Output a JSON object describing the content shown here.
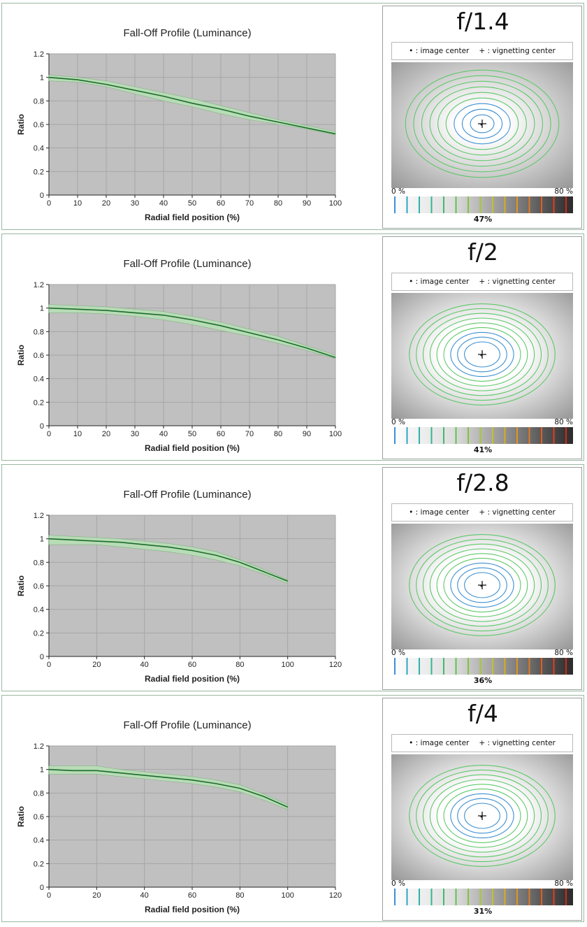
{
  "colors": {
    "plot_bg": "#c0c0c0",
    "grid": "#a6a6a6",
    "curve": "#1d6b2c",
    "band": "#b7e0b5",
    "heat_center": "#ffffff",
    "heat_edge": "#9a9a9a",
    "contour_inner": "#3d8fd1",
    "contour_outer": "#5fc86a"
  },
  "legend": {
    "image_center": "• : image center",
    "vignetting_center": "+ : vignetting center"
  },
  "scale": {
    "low_label": "0 %",
    "high_label": "80 %"
  },
  "colorbar_icons": [
    "cyan-tick",
    "teal-tick",
    "green-tick",
    "yellow-tick",
    "orange-tick",
    "red-tick"
  ],
  "panels": [
    {
      "aperture": "f/1.4",
      "falloff_percent": "47%"
    },
    {
      "aperture": "f/2",
      "falloff_percent": "41%"
    },
    {
      "aperture": "f/2.8",
      "falloff_percent": "36%"
    },
    {
      "aperture": "f/4",
      "falloff_percent": "31%"
    }
  ],
  "chart_data": [
    {
      "type": "line",
      "title": "Fall-Off Profile (Luminance)",
      "xlabel": "Radial field position (%)",
      "ylabel": "Ratio",
      "xlim": [
        0,
        100
      ],
      "ylim": [
        0,
        1.2
      ],
      "xticks": [
        0,
        10,
        20,
        30,
        40,
        50,
        60,
        70,
        80,
        90,
        100
      ],
      "yticks": [
        0,
        0.2,
        0.4,
        0.6,
        0.8,
        1,
        1.2
      ],
      "grid": true,
      "series": [
        {
          "x": [
            0,
            10,
            20,
            30,
            40,
            50,
            60,
            70,
            80,
            90,
            100
          ],
          "y": [
            1.0,
            0.98,
            0.94,
            0.89,
            0.84,
            0.78,
            0.73,
            0.67,
            0.62,
            0.57,
            0.52
          ],
          "upper": [
            1.02,
            1.0,
            0.97,
            0.92,
            0.87,
            0.82,
            0.76,
            0.7,
            0.64,
            0.59,
            0.54
          ],
          "lower": [
            0.97,
            0.96,
            0.92,
            0.86,
            0.8,
            0.75,
            0.69,
            0.64,
            0.6,
            0.56,
            0.51
          ]
        }
      ]
    },
    {
      "type": "line",
      "title": "Fall-Off Profile (Luminance)",
      "xlabel": "Radial field position (%)",
      "ylabel": "Ratio",
      "xlim": [
        0,
        100
      ],
      "ylim": [
        0,
        1.2
      ],
      "xticks": [
        0,
        10,
        20,
        30,
        40,
        50,
        60,
        70,
        80,
        90,
        100
      ],
      "yticks": [
        0,
        0.2,
        0.4,
        0.6,
        0.8,
        1,
        1.2
      ],
      "grid": true,
      "series": [
        {
          "x": [
            0,
            10,
            20,
            30,
            40,
            50,
            60,
            70,
            80,
            90,
            100
          ],
          "y": [
            1.0,
            0.99,
            0.98,
            0.96,
            0.94,
            0.9,
            0.85,
            0.79,
            0.73,
            0.66,
            0.58
          ],
          "upper": [
            1.03,
            1.02,
            1.01,
            0.99,
            0.97,
            0.93,
            0.88,
            0.82,
            0.76,
            0.68,
            0.6
          ],
          "lower": [
            0.96,
            0.96,
            0.95,
            0.93,
            0.9,
            0.86,
            0.81,
            0.76,
            0.7,
            0.64,
            0.57
          ]
        }
      ]
    },
    {
      "type": "line",
      "title": "Fall-Off Profile (Luminance)",
      "xlabel": "Radial field position (%)",
      "ylabel": "Ratio",
      "xlim": [
        0,
        120
      ],
      "ylim": [
        0,
        1.2
      ],
      "xticks": [
        0,
        20,
        40,
        60,
        80,
        100,
        120
      ],
      "yticks": [
        0,
        0.2,
        0.4,
        0.6,
        0.8,
        1,
        1.2
      ],
      "grid": true,
      "series": [
        {
          "x": [
            0,
            10,
            20,
            30,
            40,
            50,
            60,
            70,
            80,
            90,
            100
          ],
          "y": [
            1.0,
            0.99,
            0.98,
            0.97,
            0.95,
            0.93,
            0.9,
            0.86,
            0.8,
            0.72,
            0.64
          ],
          "upper": [
            1.03,
            1.02,
            1.01,
            1.0,
            0.98,
            0.96,
            0.93,
            0.89,
            0.82,
            0.74,
            0.65
          ],
          "lower": [
            0.95,
            0.95,
            0.95,
            0.93,
            0.91,
            0.89,
            0.86,
            0.82,
            0.77,
            0.7,
            0.62
          ]
        }
      ]
    },
    {
      "type": "line",
      "title": "Fall-Off Profile (Luminance)",
      "xlabel": "Radial field position (%)",
      "ylabel": "Ratio",
      "xlim": [
        0,
        120
      ],
      "ylim": [
        0,
        1.2
      ],
      "xticks": [
        0,
        20,
        40,
        60,
        80,
        100,
        120
      ],
      "yticks": [
        0,
        0.2,
        0.4,
        0.6,
        0.8,
        1,
        1.2
      ],
      "grid": true,
      "series": [
        {
          "x": [
            0,
            10,
            20,
            30,
            40,
            50,
            60,
            70,
            80,
            90,
            100
          ],
          "y": [
            1.0,
            0.99,
            0.99,
            0.97,
            0.95,
            0.93,
            0.91,
            0.88,
            0.84,
            0.77,
            0.68
          ],
          "upper": [
            1.03,
            1.03,
            1.03,
            1.0,
            0.98,
            0.96,
            0.94,
            0.91,
            0.87,
            0.79,
            0.7
          ],
          "lower": [
            0.96,
            0.96,
            0.96,
            0.94,
            0.92,
            0.9,
            0.88,
            0.85,
            0.81,
            0.74,
            0.66
          ]
        }
      ]
    }
  ]
}
